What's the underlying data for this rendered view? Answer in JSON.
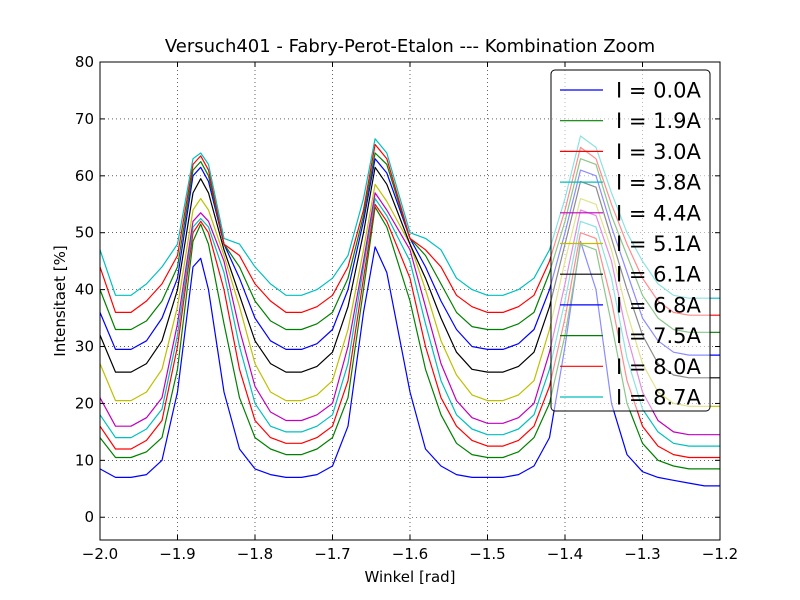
{
  "chart_data": {
    "type": "line",
    "title": "Versuch401 - Fabry-Perot-Etalon ---  Kombination Zoom",
    "xlabel": "Winkel [rad]",
    "ylabel": "Intensitaet [%]",
    "xlim": [
      -2.0,
      -1.2
    ],
    "ylim": [
      -4,
      80
    ],
    "xticks": [
      -2.0,
      -1.9,
      -1.8,
      -1.7,
      -1.6,
      -1.5,
      -1.4,
      -1.3,
      -1.2
    ],
    "xtick_labels": [
      "−2.0",
      "−1.9",
      "−1.8",
      "−1.7",
      "−1.6",
      "−1.5",
      "−1.4",
      "−1.3",
      "−1.2"
    ],
    "yticks": [
      0,
      10,
      20,
      30,
      40,
      50,
      60,
      70,
      80
    ],
    "ytick_labels": [
      "0",
      "10",
      "20",
      "30",
      "40",
      "50",
      "60",
      "70",
      "80"
    ],
    "grid": true,
    "legend_position": "top-right",
    "x": [
      -2.0,
      -1.98,
      -1.96,
      -1.94,
      -1.92,
      -1.9,
      -1.88,
      -1.87,
      -1.86,
      -1.84,
      -1.82,
      -1.8,
      -1.78,
      -1.76,
      -1.74,
      -1.72,
      -1.7,
      -1.68,
      -1.66,
      -1.645,
      -1.63,
      -1.6,
      -1.58,
      -1.56,
      -1.54,
      -1.52,
      -1.5,
      -1.48,
      -1.46,
      -1.44,
      -1.42,
      -1.4,
      -1.38,
      -1.36,
      -1.34,
      -1.32,
      -1.3,
      -1.28,
      -1.26,
      -1.24,
      -1.22,
      -1.2
    ],
    "series": [
      {
        "name": "I = 0.0A",
        "color": "#0000ff",
        "values": [
          8.5,
          7,
          7,
          7.5,
          10,
          22,
          44,
          45.5,
          40,
          22,
          12,
          8.5,
          7.5,
          7,
          7,
          7.5,
          9,
          16,
          36,
          47.5,
          43,
          22,
          12,
          9,
          7.5,
          7,
          7,
          7,
          7.5,
          9,
          14,
          30,
          48.5,
          40,
          20,
          11,
          8,
          7,
          6.5,
          6,
          5.5,
          5.5
        ]
      },
      {
        "name": "I = 1.9A",
        "color": "#008000",
        "values": [
          14,
          10.5,
          10.5,
          11.5,
          14,
          26,
          48.5,
          51.5,
          48,
          34,
          21,
          14,
          12,
          11,
          11,
          12,
          14,
          21,
          40,
          54.5,
          51,
          38,
          26,
          18,
          13,
          11,
          10.5,
          10.5,
          11.5,
          14,
          20,
          32,
          48,
          47,
          34,
          20,
          13,
          10,
          9,
          8.5,
          8.5,
          8.5
        ]
      },
      {
        "name": "I = 3.0A",
        "color": "#ff0000",
        "values": [
          16,
          12,
          12,
          13.5,
          17,
          30,
          50,
          52,
          50,
          40,
          26,
          17,
          14,
          13,
          13,
          14,
          16,
          24,
          42,
          55,
          52,
          42,
          30,
          21,
          16,
          13.5,
          12.5,
          12.5,
          13.5,
          16,
          23,
          35,
          50,
          49,
          38,
          24,
          16,
          12.5,
          11,
          10.5,
          10.5,
          10.5
        ]
      },
      {
        "name": "I = 3.8A",
        "color": "#00bfbf",
        "values": [
          18,
          14,
          14,
          15.5,
          19,
          32,
          51,
          52.5,
          51,
          43,
          30,
          20,
          16,
          15,
          15,
          16,
          18,
          27,
          44,
          56,
          53,
          45,
          34,
          24,
          18,
          15.5,
          14.5,
          14.5,
          15.5,
          18,
          26,
          38,
          52,
          51,
          42,
          28,
          19,
          15,
          13,
          12.5,
          12.5,
          12.5
        ]
      },
      {
        "name": "I = 4.4A",
        "color": "#bf00bf",
        "values": [
          21,
          16,
          16,
          17.5,
          21,
          34,
          52,
          53.5,
          52,
          45,
          33,
          23,
          18.5,
          17,
          17,
          18,
          20,
          30,
          45,
          57,
          54,
          47,
          37,
          27,
          20.5,
          17.5,
          16.5,
          16.5,
          17.5,
          20,
          29,
          41,
          54,
          53,
          45,
          32,
          22,
          17,
          15,
          14.5,
          14.5,
          14.5
        ]
      },
      {
        "name": "I = 5.1A",
        "color": "#bfbf00",
        "values": [
          27,
          20.5,
          20.5,
          22,
          26,
          37,
          54,
          56,
          54,
          46,
          37,
          27,
          22,
          20.5,
          20.5,
          21.5,
          24,
          33,
          47,
          58.5,
          55.5,
          48,
          40,
          31,
          25,
          21.5,
          20.5,
          20.5,
          21.5,
          24,
          33,
          45,
          56,
          55,
          47,
          36,
          27,
          22,
          20,
          19.5,
          19.5,
          19.5
        ]
      },
      {
        "name": "I = 6.1A",
        "color": "#000000",
        "values": [
          32,
          25.5,
          25.5,
          27,
          31,
          40,
          57,
          59.5,
          57,
          47,
          39,
          31,
          27,
          25.5,
          25.5,
          26.5,
          29,
          37,
          50,
          61.5,
          58.5,
          48,
          42,
          35,
          29,
          26,
          25.5,
          25.5,
          26.5,
          29,
          37,
          48,
          59,
          58,
          49,
          40,
          32,
          27,
          25,
          24.5,
          24.5,
          24.5
        ]
      },
      {
        "name": "I = 6.8A",
        "color": "#0000ff",
        "values": [
          36,
          29.5,
          29.5,
          31,
          35,
          42,
          60,
          61.5,
          59,
          48,
          42,
          35,
          31,
          29.5,
          29.5,
          30.5,
          33,
          40,
          52,
          63,
          60.5,
          49,
          44,
          38,
          33,
          30,
          29.5,
          29.5,
          30.5,
          33,
          40,
          50,
          61,
          60,
          51,
          43,
          35,
          31,
          29,
          28.5,
          28.5,
          28.5
        ]
      },
      {
        "name": "I = 7.5A",
        "color": "#008000",
        "values": [
          40,
          33,
          33,
          34.5,
          38,
          44,
          61,
          62.5,
          60,
          48,
          44,
          38,
          34.5,
          33,
          33,
          34,
          36,
          42,
          53,
          64,
          62,
          49,
          46,
          41,
          36,
          33.5,
          33,
          33,
          34,
          36,
          43,
          52,
          63,
          62,
          53,
          46,
          39,
          35,
          33,
          32.5,
          32.5,
          32.5
        ]
      },
      {
        "name": "I = 8.0A",
        "color": "#ff0000",
        "values": [
          44,
          36,
          36,
          38,
          41,
          46,
          62,
          63.5,
          61,
          48,
          46,
          41,
          38,
          36,
          36,
          37,
          39,
          44,
          54,
          65.5,
          63,
          49,
          47,
          44,
          39,
          37,
          36,
          36,
          37,
          39,
          45,
          54,
          65,
          63,
          55,
          48,
          42,
          38,
          36,
          35.5,
          35.5,
          35.5
        ]
      },
      {
        "name": "I = 8.7A",
        "color": "#00bfbf",
        "values": [
          47,
          39,
          39,
          41,
          44,
          48,
          63,
          64,
          62,
          49,
          48,
          44,
          41,
          39,
          39,
          40,
          42,
          46,
          56,
          66.5,
          64,
          50,
          49,
          47,
          42,
          40,
          39,
          39,
          40,
          42,
          47,
          56,
          67,
          65,
          57,
          50,
          45,
          41,
          39,
          38.5,
          38.5,
          38.5
        ]
      }
    ]
  }
}
